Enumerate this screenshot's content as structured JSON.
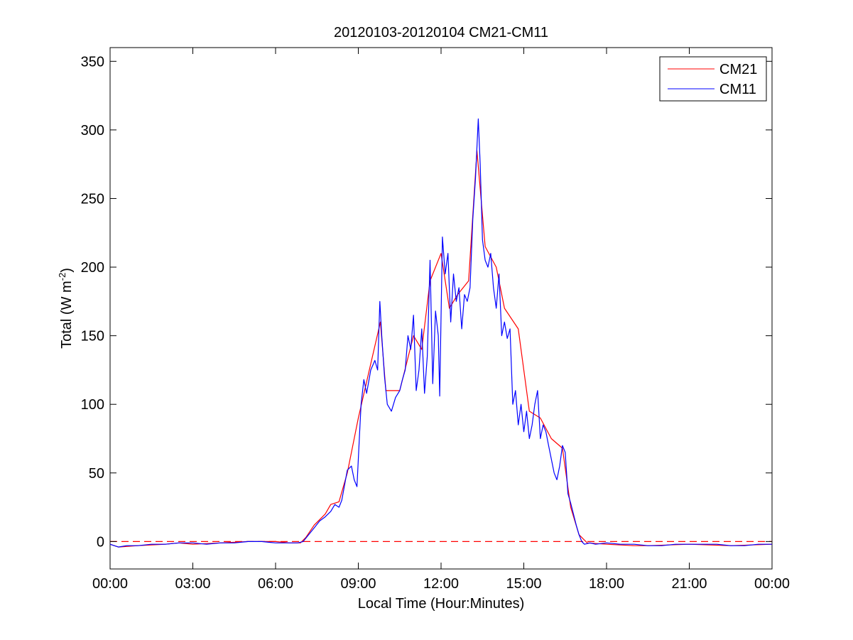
{
  "chart_data": {
    "type": "line",
    "title": "20120103-20120104 CM21-CM11",
    "xlabel": "Local Time (Hour:Minutes)",
    "ylabel": "Total (W m",
    "ylabel_sup": "-2",
    "ylabel_tail": ")",
    "xlim": [
      0,
      24
    ],
    "ylim": [
      -20,
      360
    ],
    "xtick_values": [
      0,
      3,
      6,
      9,
      12,
      15,
      18,
      21,
      24
    ],
    "xtick_labels": [
      "00:00",
      "03:00",
      "06:00",
      "09:00",
      "12:00",
      "15:00",
      "18:00",
      "21:00",
      "00:00"
    ],
    "ytick_values": [
      0,
      50,
      100,
      150,
      200,
      250,
      300,
      350
    ],
    "ytick_labels": [
      "0",
      "50",
      "100",
      "150",
      "200",
      "250",
      "300",
      "350"
    ],
    "grid": false,
    "legend_position": "top-right",
    "zero_line": {
      "y": 0,
      "color": "#ff0000",
      "style": "dashed"
    },
    "series": [
      {
        "name": "CM21",
        "color": "#ff0000",
        "x": [
          0.0,
          0.3,
          1.0,
          2.0,
          2.5,
          3.0,
          4.0,
          5.0,
          5.5,
          6.0,
          6.5,
          6.9,
          7.1,
          7.4,
          7.8,
          8.0,
          8.3,
          8.6,
          9.0,
          9.4,
          9.8,
          10.0,
          10.5,
          11.0,
          11.3,
          11.6,
          12.0,
          12.3,
          12.6,
          13.0,
          13.3,
          13.6,
          14.0,
          14.3,
          14.8,
          15.2,
          15.6,
          16.0,
          16.4,
          16.7,
          17.0,
          17.3,
          18.0,
          19.0,
          19.5,
          21.0,
          22.5,
          24.0
        ],
        "y": [
          -2,
          -4,
          -3,
          -2,
          -1,
          -2,
          -1,
          0,
          0,
          0,
          -1,
          -1,
          3,
          12,
          20,
          27,
          29,
          50,
          90,
          125,
          160,
          110,
          110,
          150,
          140,
          190,
          210,
          170,
          180,
          190,
          285,
          215,
          200,
          170,
          155,
          95,
          90,
          75,
          68,
          25,
          5,
          -1,
          -2,
          -3,
          -3,
          -2,
          -3,
          -2
        ]
      },
      {
        "name": "CM11",
        "color": "#0000ff",
        "x": [
          0.0,
          0.15,
          0.3,
          0.6,
          1.0,
          1.5,
          2.0,
          2.5,
          3.0,
          3.5,
          4.0,
          4.5,
          5.0,
          5.5,
          6.0,
          6.5,
          6.8,
          7.0,
          7.2,
          7.4,
          7.6,
          7.8,
          8.0,
          8.15,
          8.3,
          8.4,
          8.6,
          8.75,
          8.85,
          8.95,
          9.05,
          9.1,
          9.2,
          9.3,
          9.45,
          9.6,
          9.7,
          9.78,
          9.85,
          9.95,
          10.05,
          10.2,
          10.35,
          10.5,
          10.6,
          10.7,
          10.8,
          10.9,
          11.0,
          11.1,
          11.2,
          11.3,
          11.4,
          11.5,
          11.6,
          11.7,
          11.8,
          11.9,
          11.95,
          12.05,
          12.15,
          12.25,
          12.35,
          12.45,
          12.55,
          12.65,
          12.75,
          12.85,
          12.95,
          13.05,
          13.15,
          13.25,
          13.35,
          13.42,
          13.5,
          13.6,
          13.7,
          13.8,
          13.9,
          14.0,
          14.1,
          14.2,
          14.3,
          14.4,
          14.5,
          14.6,
          14.7,
          14.8,
          14.9,
          15.0,
          15.1,
          15.2,
          15.3,
          15.4,
          15.5,
          15.6,
          15.7,
          15.8,
          15.9,
          16.0,
          16.1,
          16.2,
          16.3,
          16.4,
          16.5,
          16.6,
          16.7,
          16.8,
          16.9,
          17.0,
          17.1,
          17.2,
          17.4,
          17.6,
          18.0,
          18.5,
          19.0,
          19.5,
          20.0,
          20.5,
          21.0,
          21.5,
          22.0,
          22.5,
          23.0,
          23.5,
          24.0
        ],
        "y": [
          -2,
          -3,
          -4,
          -3,
          -3,
          -2,
          -2,
          -1,
          -1,
          -2,
          -1,
          -1,
          0,
          0,
          -1,
          -1,
          -1,
          0,
          5,
          10,
          15,
          18,
          22,
          27,
          25,
          30,
          52,
          55,
          45,
          40,
          80,
          100,
          118,
          108,
          125,
          132,
          125,
          175,
          150,
          120,
          100,
          95,
          105,
          110,
          118,
          125,
          150,
          140,
          165,
          110,
          125,
          155,
          108,
          135,
          205,
          115,
          168,
          150,
          106,
          222,
          195,
          210,
          160,
          195,
          175,
          185,
          155,
          180,
          175,
          185,
          235,
          265,
          308,
          275,
          220,
          205,
          200,
          210,
          185,
          170,
          195,
          150,
          160,
          148,
          155,
          100,
          110,
          85,
          100,
          80,
          95,
          75,
          85,
          100,
          110,
          75,
          85,
          80,
          70,
          60,
          50,
          45,
          55,
          70,
          65,
          35,
          28,
          20,
          12,
          5,
          0,
          -2,
          -1,
          -2,
          -1,
          -2,
          -2,
          -3,
          -3,
          -2,
          -2,
          -2,
          -2,
          -3,
          -3,
          -2,
          -2
        ]
      }
    ]
  }
}
